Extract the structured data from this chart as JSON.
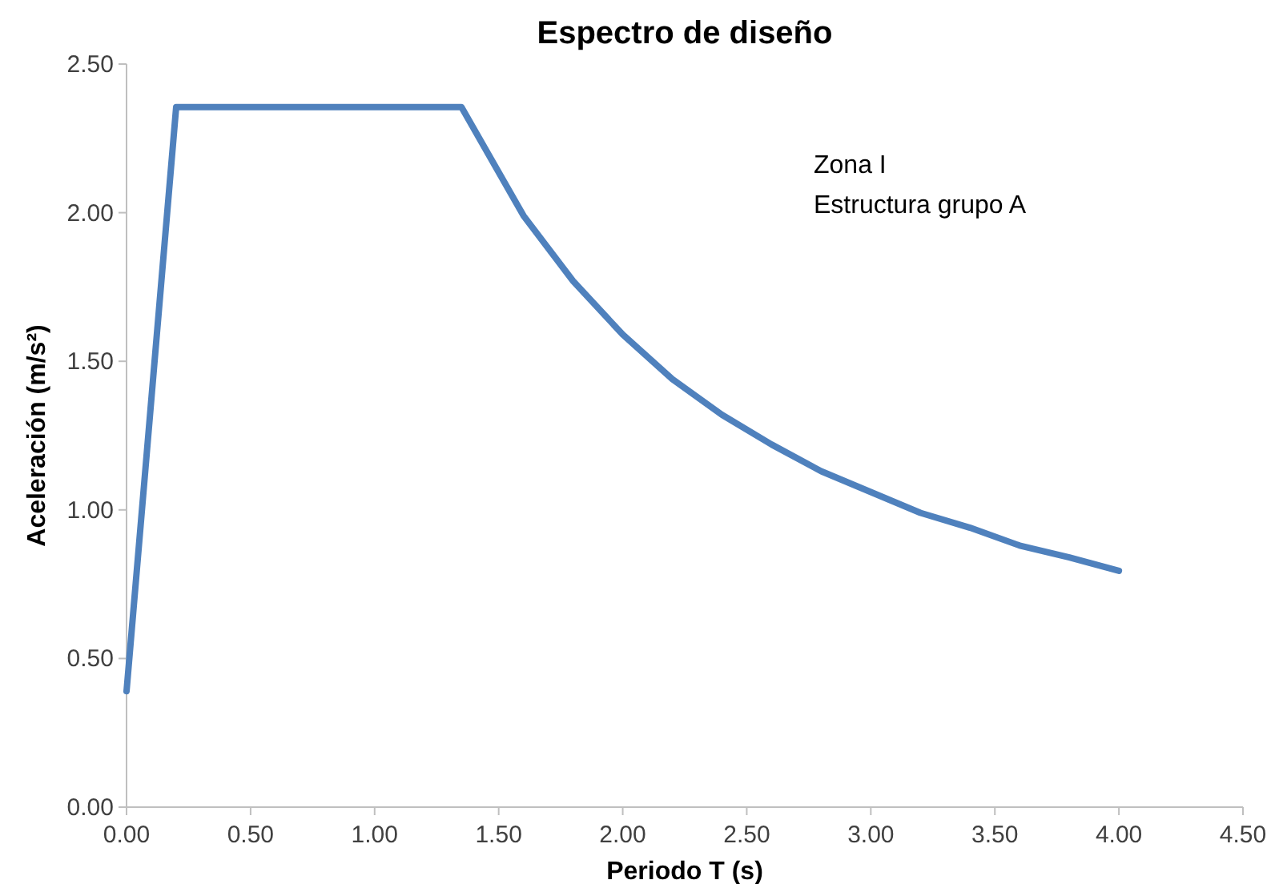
{
  "chart_data": {
    "type": "line",
    "title": "Espectro de diseño",
    "xlabel": "Periodo T (s)",
    "ylabel": "Aceleración (m/s²)",
    "annotations": [
      "Zona I",
      "Estructura grupo A"
    ],
    "x": [
      0,
      0.2,
      1.35,
      1.6,
      1.8,
      2.0,
      2.2,
      2.4,
      2.6,
      2.8,
      3.0,
      3.2,
      3.4,
      3.6,
      3.8,
      4.0
    ],
    "series": [
      {
        "color": "#4f81bd",
        "values": [
          0.39,
          2.355,
          2.355,
          1.99,
          1.77,
          1.59,
          1.44,
          1.32,
          1.22,
          1.13,
          1.06,
          0.99,
          0.94,
          0.88,
          0.84,
          0.795
        ]
      }
    ],
    "xlim": [
      0,
      4.5
    ],
    "xticks": [
      {
        "value": 0,
        "label": "0.00"
      },
      {
        "value": 0.5,
        "label": "0.50"
      },
      {
        "value": 1,
        "label": "1.00"
      },
      {
        "value": 1.5,
        "label": "1.50"
      },
      {
        "value": 2,
        "label": "2.00"
      },
      {
        "value": 2.5,
        "label": "2.50"
      },
      {
        "value": 3,
        "label": "3.00"
      },
      {
        "value": 3.5,
        "label": "3.50"
      },
      {
        "value": 4,
        "label": "4.00"
      },
      {
        "value": 4.5,
        "label": "4.50"
      }
    ],
    "ylim": [
      0,
      2.5
    ],
    "yticks": [
      {
        "value": 0,
        "label": "0.00"
      },
      {
        "value": 0.5,
        "label": "0.50"
      },
      {
        "value": 1,
        "label": "1.00"
      },
      {
        "value": 1.5,
        "label": "1.50"
      },
      {
        "value": 2,
        "label": "2.00"
      },
      {
        "value": 2.5,
        "label": "2.50"
      }
    ],
    "grid": false,
    "marker": "none",
    "line_style": "solid"
  }
}
